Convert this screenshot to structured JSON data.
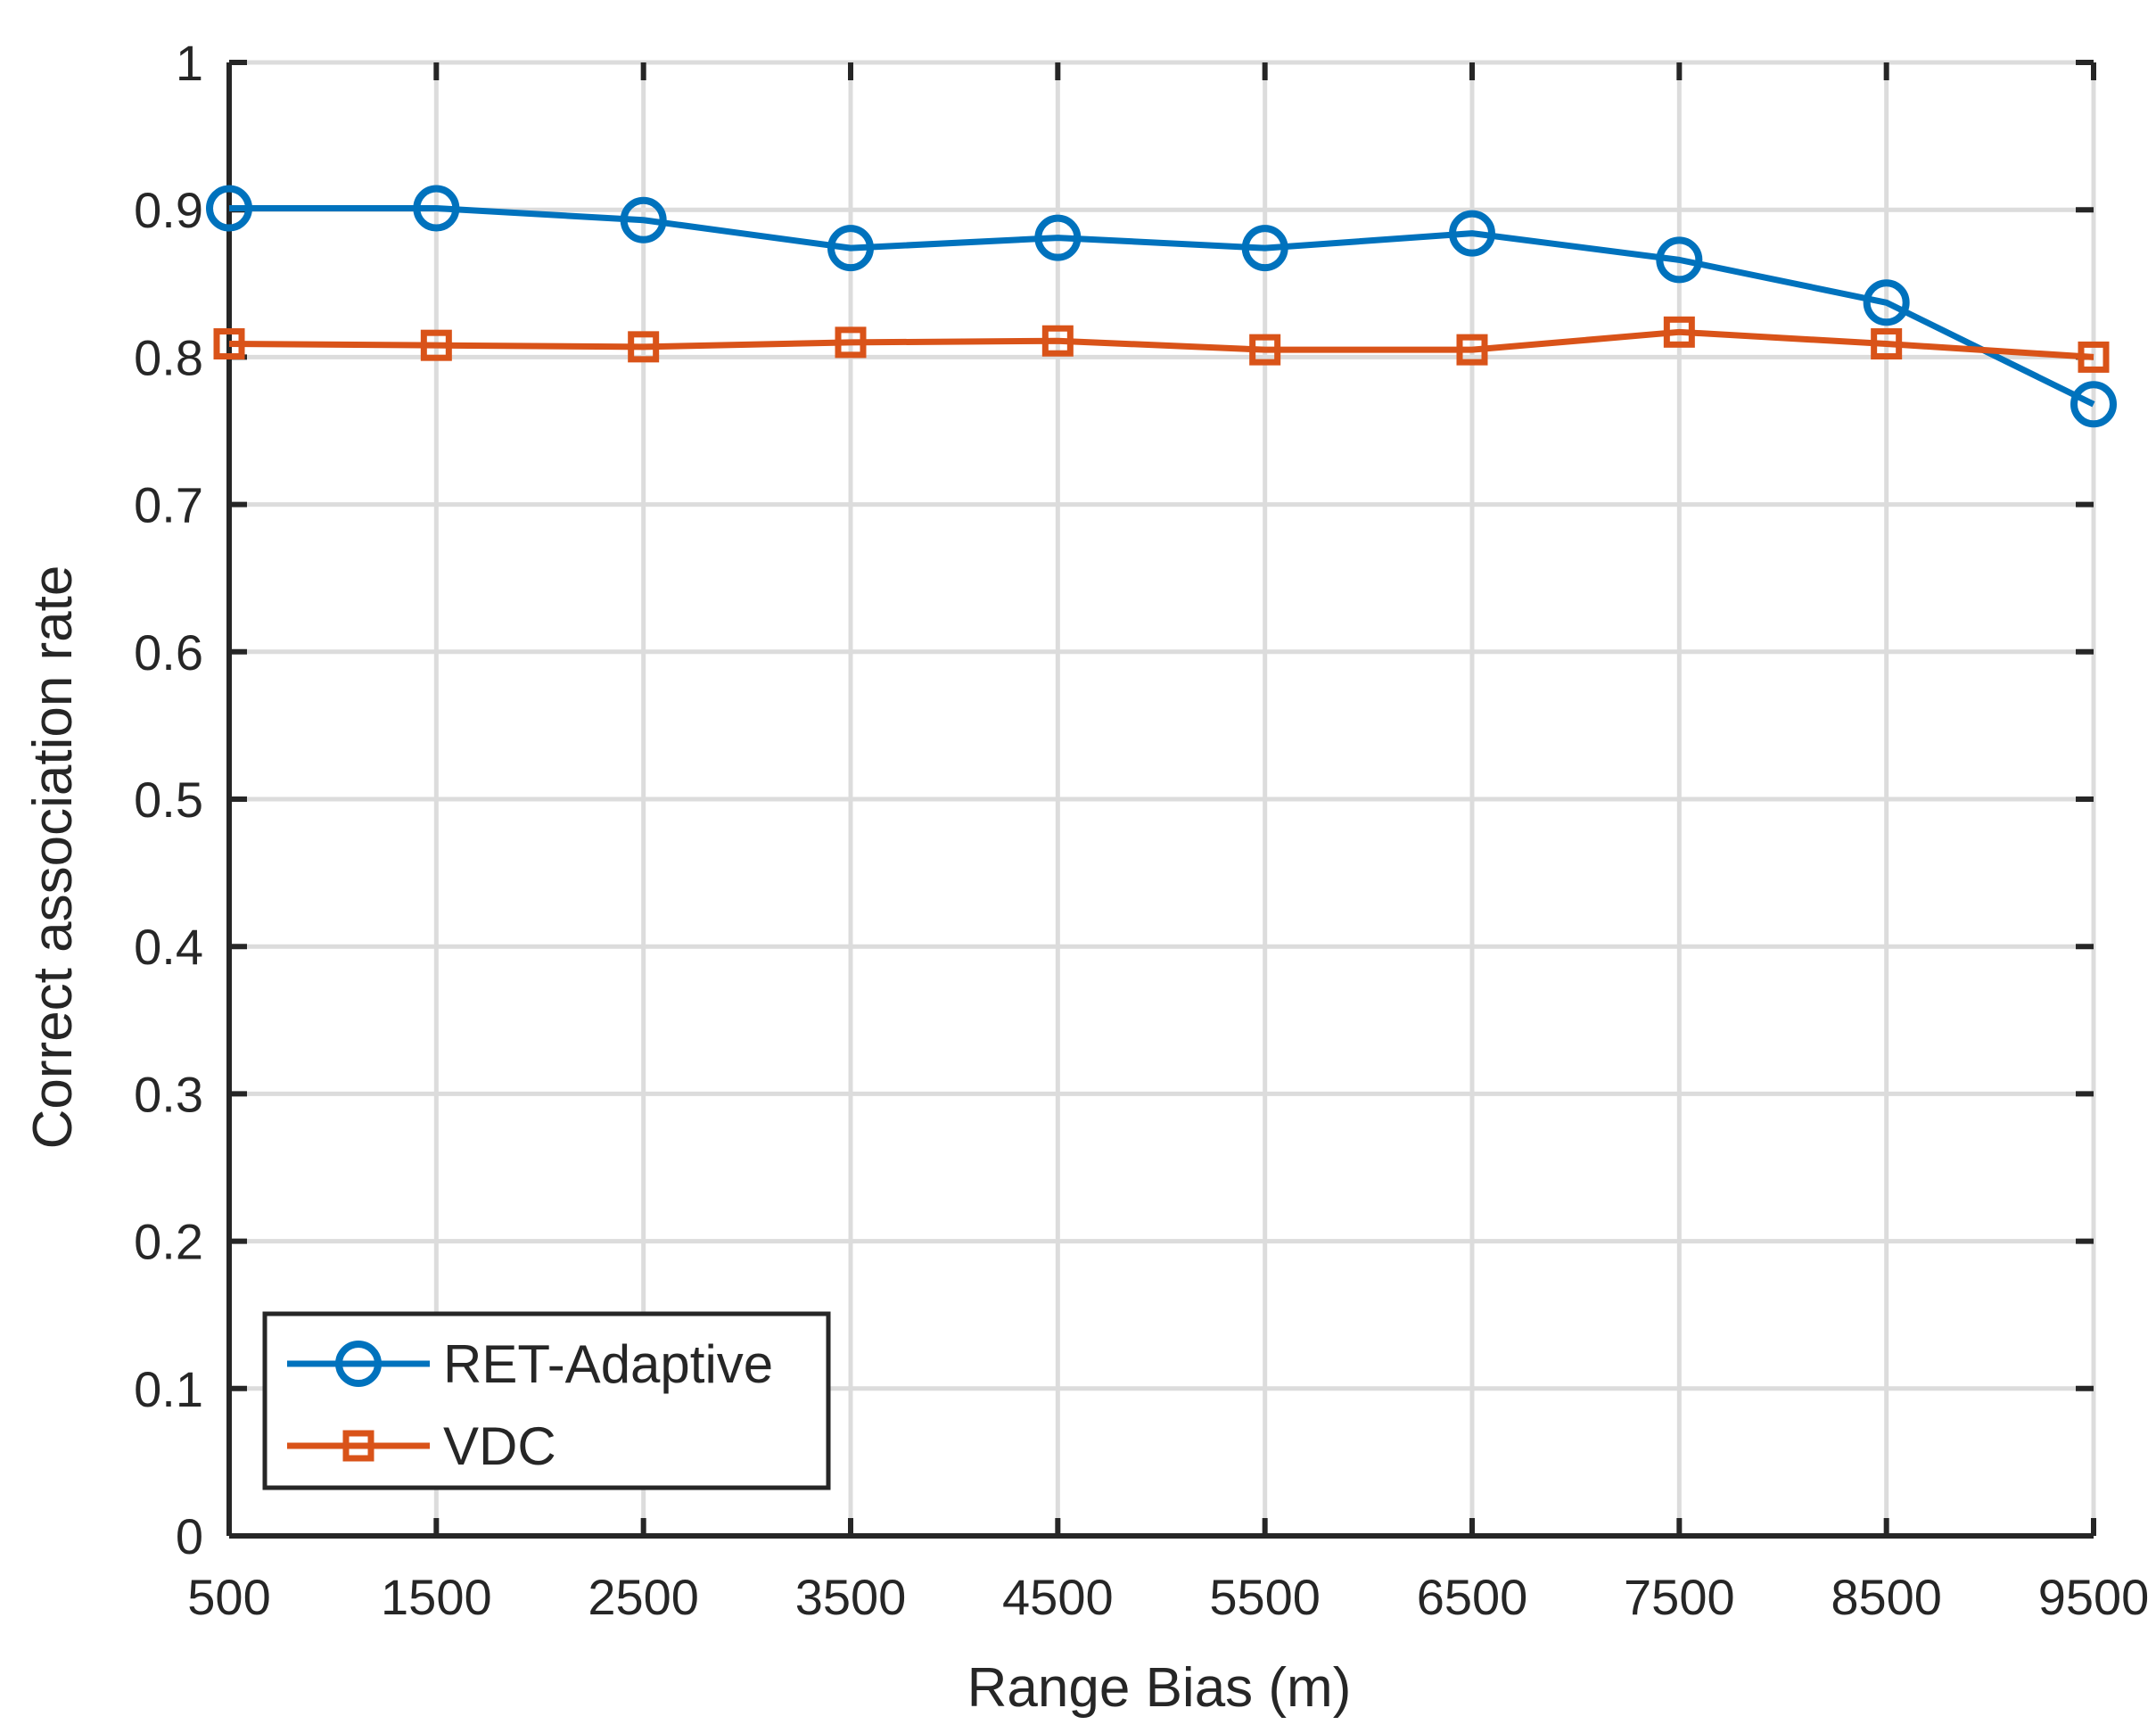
{
  "chart_data": {
    "type": "line",
    "title": "",
    "xlabel": "Range Bias (m)",
    "ylabel": "Correct association rate",
    "x": [
      500,
      1500,
      2500,
      3500,
      4500,
      5500,
      6500,
      7500,
      8500,
      9500
    ],
    "x_ticks": [
      "500",
      "1500",
      "2500",
      "3500",
      "4500",
      "5500",
      "6500",
      "7500",
      "8500",
      "9500"
    ],
    "y_ticks": [
      "0",
      "0.1",
      "0.2",
      "0.3",
      "0.4",
      "0.5",
      "0.6",
      "0.7",
      "0.8",
      "0.9",
      "1"
    ],
    "xlim": [
      500,
      9500
    ],
    "ylim": [
      0,
      1
    ],
    "grid": true,
    "legend_position": "bottom-left",
    "series": [
      {
        "name": "RET-Adaptive",
        "color": "#0072BD",
        "marker": "circle",
        "values": [
          0.901,
          0.901,
          0.893,
          0.874,
          0.881,
          0.874,
          0.884,
          0.866,
          0.837,
          0.768
        ]
      },
      {
        "name": "VDC",
        "color": "#D95319",
        "marker": "square",
        "values": [
          0.809,
          0.808,
          0.807,
          0.81,
          0.811,
          0.805,
          0.805,
          0.817,
          0.809,
          0.8
        ]
      }
    ]
  }
}
